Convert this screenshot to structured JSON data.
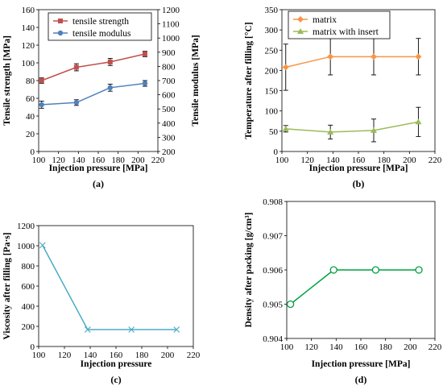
{
  "chart_data": [
    {
      "panel": "(a)",
      "type": "line",
      "xlabel": "Injection pressure [MPa]",
      "ylabel": "Tensile strength [MPa]",
      "y2label": "Tensile modulus [MPa]",
      "xlim": [
        100,
        220
      ],
      "ylim": [
        0,
        160
      ],
      "y2lim": [
        200,
        1200
      ],
      "xticks": [
        100,
        120,
        140,
        160,
        180,
        200,
        220
      ],
      "yticks": [
        0,
        20,
        40,
        60,
        80,
        100,
        120,
        140,
        160
      ],
      "y2ticks": [
        200,
        300,
        400,
        500,
        600,
        700,
        800,
        900,
        1000,
        1100,
        1200
      ],
      "grid": false,
      "legend_position": "top-left",
      "series": [
        {
          "name": "tensile strength",
          "axis": "left",
          "color": "#c0504d",
          "marker": "square",
          "x": [
            103,
            138,
            172,
            207
          ],
          "y": [
            80,
            95,
            101,
            110
          ],
          "err": [
            3,
            4,
            4,
            3
          ]
        },
        {
          "name": "tensile modulus",
          "axis": "right",
          "color": "#4f81bd",
          "marker": "circle",
          "x": [
            103,
            138,
            172,
            207
          ],
          "y": [
            530,
            545,
            650,
            680
          ],
          "err": [
            25,
            20,
            25,
            20
          ]
        }
      ]
    },
    {
      "panel": "(b)",
      "type": "line",
      "xlabel": "Injection pressure [MPa]",
      "ylabel": "Temperature after filling [°C]",
      "xlim": [
        100,
        220
      ],
      "ylim": [
        0,
        350
      ],
      "xticks": [
        100,
        120,
        140,
        160,
        180,
        200,
        220
      ],
      "yticks": [
        0,
        50,
        100,
        150,
        200,
        250,
        300,
        350
      ],
      "grid": false,
      "legend_position": "top-left",
      "series": [
        {
          "name": "matrix",
          "color": "#f79646",
          "marker": "diamond",
          "x": [
            103,
            138,
            172,
            207
          ],
          "y": [
            208,
            234,
            234,
            234
          ],
          "err": [
            57,
            45,
            45,
            45
          ]
        },
        {
          "name": "matrix with insert",
          "color": "#9bbb59",
          "marker": "triangle",
          "x": [
            103,
            138,
            172,
            207
          ],
          "y": [
            56,
            48,
            52,
            73
          ],
          "err": [
            8,
            17,
            28,
            36
          ]
        }
      ]
    },
    {
      "panel": "(c)",
      "type": "line",
      "xlabel": "Injection pressure",
      "ylabel": "Viscosity after filling [Pa·s]",
      "xlim": [
        100,
        220
      ],
      "ylim": [
        0,
        1200
      ],
      "xticks": [
        100,
        120,
        140,
        160,
        180,
        200,
        220
      ],
      "yticks": [
        0,
        200,
        400,
        600,
        800,
        1000,
        1200
      ],
      "grid": false,
      "series": [
        {
          "color": "#4bacc6",
          "marker": "x",
          "x": [
            103,
            138,
            172,
            207
          ],
          "y": [
            1005,
            168,
            168,
            168
          ]
        }
      ]
    },
    {
      "panel": "(d)",
      "type": "line",
      "xlabel": "Injection pressure [MPa]",
      "ylabel": "Density after packing [g/cm³]",
      "xlim": [
        100,
        220
      ],
      "ylim": [
        0.904,
        0.908
      ],
      "xticks": [
        100,
        120,
        140,
        160,
        180,
        200,
        220
      ],
      "yticks": [
        0.904,
        0.905,
        0.906,
        0.907,
        0.908
      ],
      "grid": false,
      "series": [
        {
          "color": "#00a040",
          "marker": "open-circle",
          "x": [
            103,
            138,
            172,
            207
          ],
          "y": [
            0.905,
            0.906,
            0.906,
            0.906
          ]
        }
      ]
    }
  ]
}
